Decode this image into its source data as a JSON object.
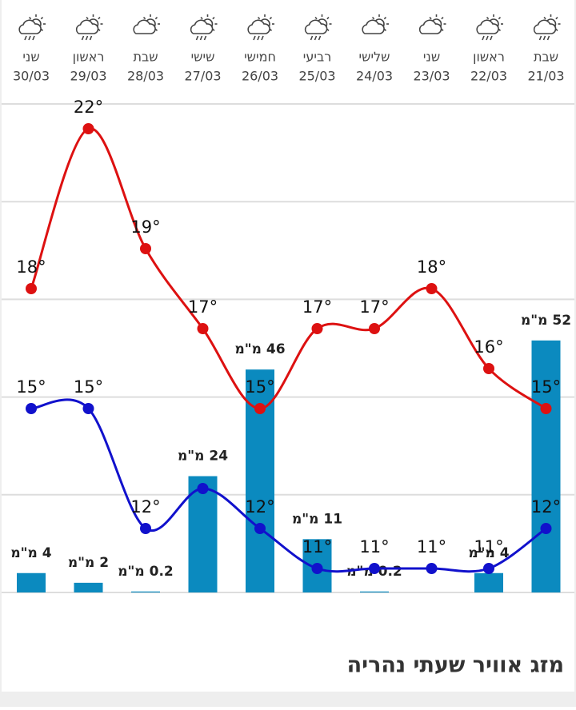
{
  "chart_data": {
    "type": "line",
    "categories": [
      "30/03",
      "29/03",
      "28/03",
      "27/03",
      "26/03",
      "25/03",
      "24/03",
      "23/03",
      "22/03",
      "21/03"
    ],
    "day_names": [
      "שני",
      "ראשון",
      "שבת",
      "שישי",
      "חמישי",
      "רביעי",
      "שלישי",
      "שני",
      "ראשון",
      "שבת"
    ],
    "ylim": [
      10.4,
      22.62
    ],
    "y2lim": [
      0,
      100.8
    ],
    "series": [
      {
        "name": "high",
        "color": "#dd1111",
        "values": [
          18,
          22,
          19,
          17,
          15,
          17,
          17,
          18,
          16,
          15
        ],
        "value_labels": [
          "18°",
          "22°",
          "19°",
          "17°",
          "15°",
          "17°",
          "17°",
          "18°",
          "16°",
          "15°"
        ]
      },
      {
        "name": "low",
        "color": "#1111cc",
        "values": [
          15,
          15,
          12,
          13,
          12,
          11,
          11,
          11,
          11,
          12
        ],
        "value_labels": [
          "15°",
          "15°",
          "12°",
          null,
          "12°",
          "11°",
          "11°",
          "11°",
          "11°",
          "12°"
        ]
      },
      {
        "name": "rain",
        "type": "bar",
        "axis": "y2",
        "color": "#0b8abf",
        "values": [
          4,
          2,
          0.2,
          24,
          46,
          11,
          0.2,
          null,
          4,
          52
        ],
        "value_labels": [
          "4 מ\"מ",
          "2 מ\"מ",
          "0.2 מ\"מ",
          "24 מ\"מ",
          "46 מ\"מ",
          "11 מ\"מ",
          "0.2 מ\"מ",
          null,
          "4 מ\"מ",
          "52 מ\"מ"
        ]
      }
    ]
  },
  "heading": "מזג אוויר שעתי נהריה"
}
